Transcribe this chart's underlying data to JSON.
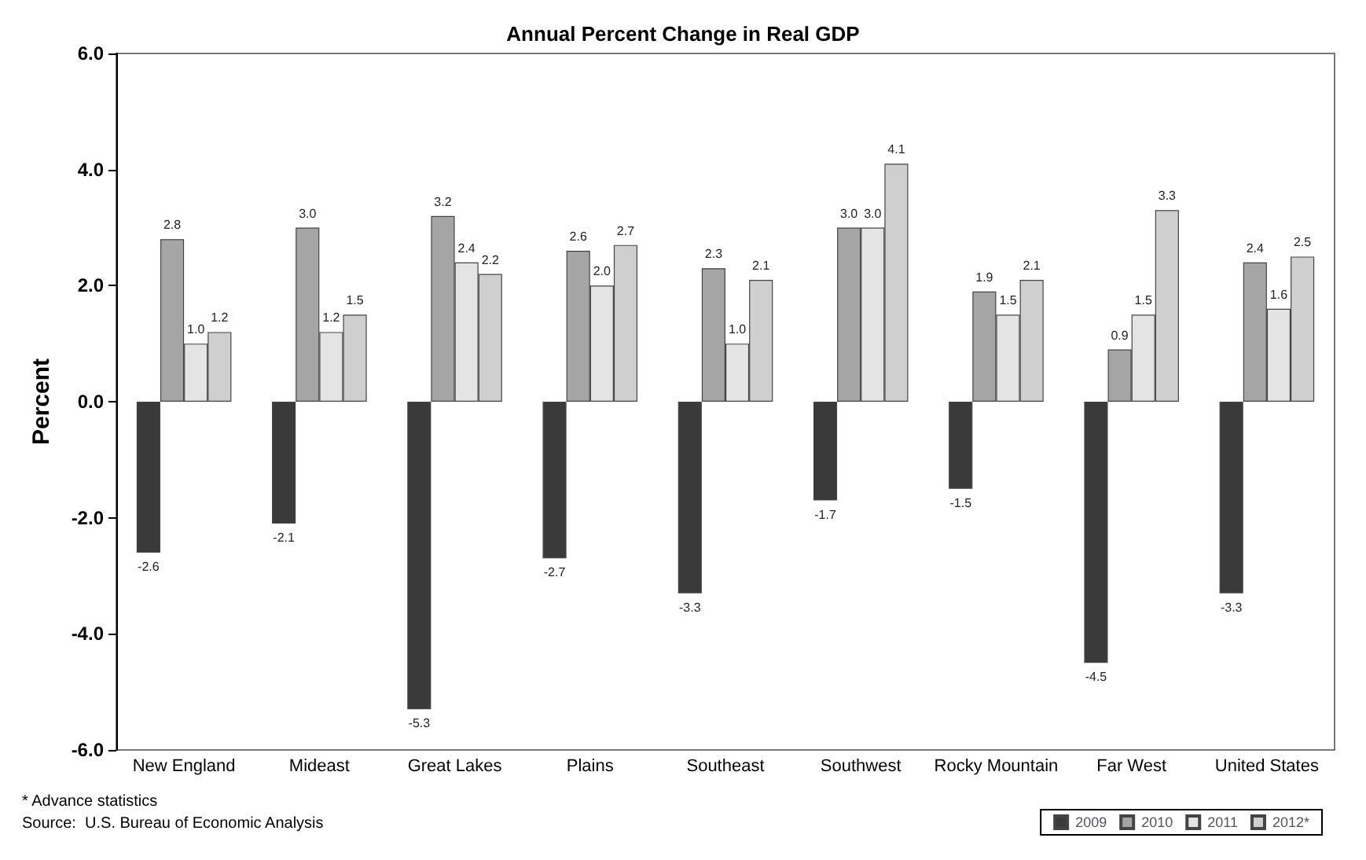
{
  "chart_data": {
    "type": "bar",
    "title": "Annual Percent Change in Real GDP",
    "ylabel": "Percent",
    "categories": [
      "New England",
      "Mideast",
      "Great Lakes",
      "Plains",
      "Southeast",
      "Southwest",
      "Rocky Mountain",
      "Far West",
      "United States"
    ],
    "series": [
      {
        "name": "2009",
        "color": "#3a3a3a",
        "values": [
          -2.6,
          -2.1,
          -5.3,
          -2.7,
          -3.3,
          -1.7,
          -1.5,
          -4.5,
          -3.3
        ],
        "value_labels": [
          "-2.6",
          "-2.1",
          "-5.3",
          "-2.7",
          "-3.3",
          "-1.7",
          "-1.5",
          "-4.5",
          "-3.3"
        ]
      },
      {
        "name": "2010",
        "color": "#a5a5a5",
        "values": [
          2.8,
          3.0,
          3.2,
          2.6,
          2.3,
          3.0,
          1.9,
          0.9,
          2.4
        ],
        "value_labels": [
          "2.8",
          "3.0",
          "3.2",
          "2.6",
          "2.3",
          "3.0",
          "1.9",
          "0.9",
          "2.4"
        ]
      },
      {
        "name": "2011",
        "color": "#e4e4e4",
        "values": [
          1.0,
          1.2,
          2.4,
          2.0,
          1.0,
          3.0,
          1.5,
          1.5,
          1.6
        ],
        "value_labels": [
          "1.0",
          "1.2",
          "2.4",
          "2.0",
          "1.0",
          "3.0",
          "1.5",
          "1.5",
          "1.6"
        ]
      },
      {
        "name": "2012*",
        "color": "#cfcfcf",
        "values": [
          1.2,
          1.5,
          2.2,
          2.7,
          2.1,
          4.1,
          2.1,
          3.3,
          2.5
        ],
        "value_labels": [
          "1.2",
          "1.5",
          "2.2",
          "2.7",
          "2.1",
          "4.1",
          "2.1",
          "3.3",
          "2.5"
        ]
      }
    ],
    "ylim": [
      -6,
      6
    ],
    "yticks": [
      {
        "value": -6,
        "label": "-6.0"
      },
      {
        "value": -4,
        "label": "-4.0"
      },
      {
        "value": -2,
        "label": "-2.0"
      },
      {
        "value": 0,
        "label": "0.0"
      },
      {
        "value": 2,
        "label": "2.0"
      },
      {
        "value": 4,
        "label": "4.0"
      },
      {
        "value": 6,
        "label": "6.0"
      }
    ],
    "grid": false,
    "legend": "bottom right",
    "annotations": [
      "* Advance statistics",
      "Source:  U.S. Bureau of Economic Analysis"
    ]
  }
}
